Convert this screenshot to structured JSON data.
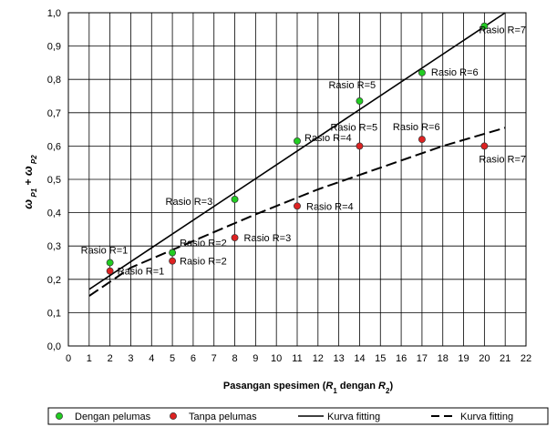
{
  "chart_data": {
    "type": "scatter",
    "title": "",
    "xlabel": "",
    "ylabel": "",
    "xlim": [
      0,
      22
    ],
    "ylim": [
      0,
      1.0
    ],
    "x_ticks": [
      "0",
      "1",
      "2",
      "3",
      "4",
      "5",
      "6",
      "7",
      "8",
      "9",
      "10",
      "11",
      "12",
      "13",
      "14",
      "15",
      "16",
      "17",
      "18",
      "19",
      "20",
      "21",
      "22"
    ],
    "y_ticks": [
      "0,0",
      "0,1",
      "0,2",
      "0,3",
      "0,4",
      "0,5",
      "0,6",
      "0,7",
      "0,8",
      "0,9",
      "1,0"
    ],
    "grid": true,
    "legend_position": "bottom",
    "series": [
      {
        "name": "Dengan pelumas",
        "kind": "points",
        "color": "#22cc22",
        "x": [
          2,
          5,
          8,
          11,
          14,
          17,
          20
        ],
        "y": [
          0.25,
          0.28,
          0.44,
          0.615,
          0.735,
          0.82,
          0.96
        ],
        "labels": [
          "Rasio R=1",
          "Rasio R=2",
          "Rasio R=3",
          "Rasio R=4",
          "Rasio R=5",
          "Rasio R=6",
          "Rasio R=7"
        ]
      },
      {
        "name": "Tanpa pelumas",
        "kind": "points",
        "color": "#dd2222",
        "x": [
          2,
          5,
          8,
          11,
          14,
          17,
          20
        ],
        "y": [
          0.225,
          0.255,
          0.325,
          0.42,
          0.6,
          0.62,
          0.6
        ],
        "labels": [
          "Rasio R=1",
          "Rasio R=2",
          "Rasio R=3",
          "Rasio R=4",
          "Rasio R=5",
          "Rasio R=6",
          "Rasio R=7"
        ]
      },
      {
        "name": "Kurva fitting",
        "kind": "line",
        "dash": "solid",
        "color": "#000000",
        "x": [
          1,
          21
        ],
        "y": [
          0.17,
          1.0
        ]
      },
      {
        "name": "Kurva fitting",
        "kind": "line",
        "dash": "dashed",
        "color": "#000000",
        "x": [
          1,
          3,
          6,
          9,
          12,
          15,
          18,
          21
        ],
        "y": [
          0.15,
          0.235,
          0.315,
          0.395,
          0.47,
          0.535,
          0.6,
          0.655
        ]
      }
    ]
  }
}
